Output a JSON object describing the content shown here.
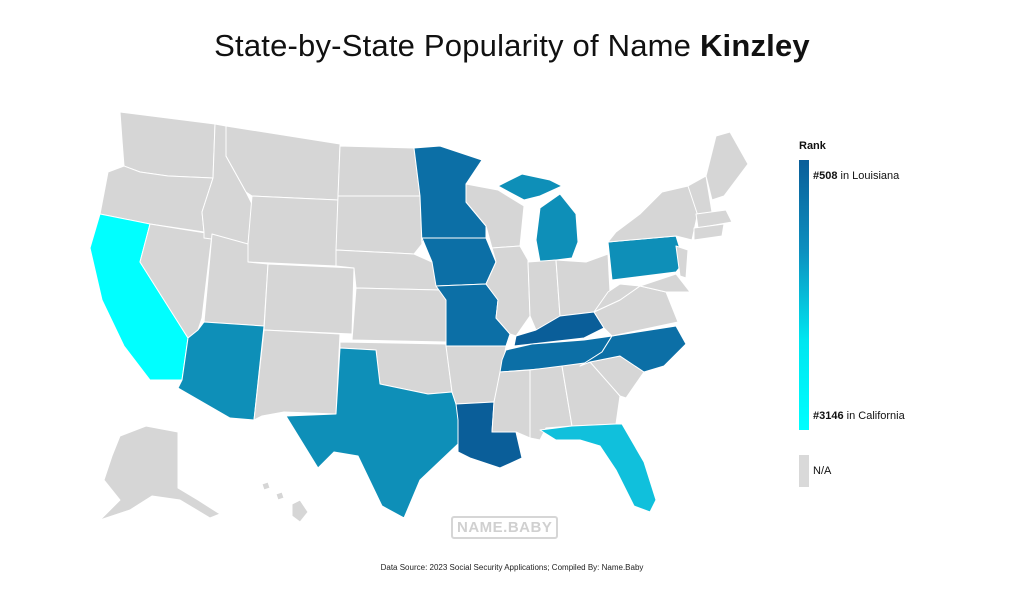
{
  "title": {
    "prefix": "State-by-State Popularity of Name ",
    "name": "Kinzley"
  },
  "legend": {
    "heading": "Rank",
    "top_rank": "#508",
    "top_state": " in Louisiana",
    "bottom_rank": "#3146",
    "bottom_state": " in California",
    "na_label": "N/A"
  },
  "watermark": "NAME.BABY",
  "source": "Data Source: 2023 Social Security Applications; Compiled By: Name.Baby",
  "colors": {
    "na": "#d6d6d6",
    "darkest": "#0a5e99",
    "dark": "#0c6fa6",
    "mid": "#0e8fb8",
    "light": "#10b7d6",
    "lightest": "#00ffff"
  },
  "map_data": {
    "ranked_states": [
      {
        "state": "Louisiana",
        "rank": 508,
        "color": "#0a5e99"
      },
      {
        "state": "Iowa",
        "color": "#0c6fa6"
      },
      {
        "state": "Minnesota",
        "color": "#0c6fa6"
      },
      {
        "state": "Missouri",
        "color": "#0c6fa6"
      },
      {
        "state": "Kentucky",
        "color": "#0a5e99"
      },
      {
        "state": "Tennessee",
        "color": "#0c6fa6"
      },
      {
        "state": "North Carolina",
        "color": "#0c6fa6"
      },
      {
        "state": "Michigan",
        "color": "#0e8fb8"
      },
      {
        "state": "Pennsylvania",
        "color": "#0e8fb8"
      },
      {
        "state": "Texas",
        "color": "#0e8fb8"
      },
      {
        "state": "Arizona",
        "color": "#0e8fb8"
      },
      {
        "state": "Florida",
        "color": "#10c0dc"
      },
      {
        "state": "California",
        "rank": 3146,
        "color": "#00ffff"
      }
    ]
  }
}
